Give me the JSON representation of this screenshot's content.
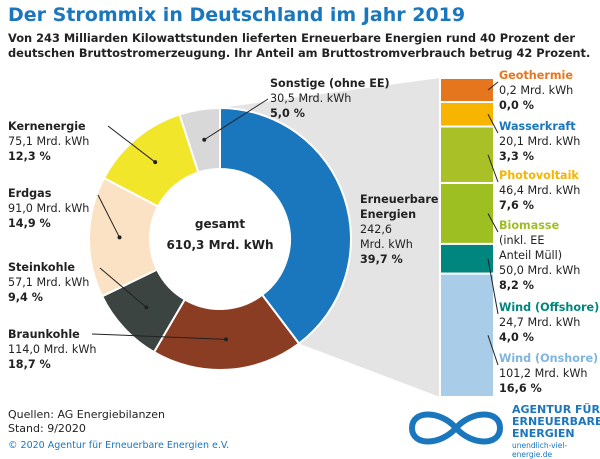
{
  "title": "Der Strommix in Deutschland im Jahr 2019",
  "subtitle": "Von 243 Milliarden Kilowattstunden lieferten Erneuerbare Energien rund 40 Prozent der deutschen Bruttostromerzeugung. Ihr Anteil am Bruttostromverbrauch betrug 42 Prozent.",
  "colors": {
    "accent": "#1a76bd",
    "kernenergie": "#f2e62a",
    "erdgas": "#fbe2c4",
    "steinkohle": "#3b4440",
    "braunkohle": "#8a3d22",
    "erneuerbare": "#1a76bd",
    "sonstige": "#d8d8d8",
    "geothermie": "#e6761e",
    "wasserkraft": "#f7b500",
    "photovoltaik": "#a9c126",
    "biomasse": "#9ebf22",
    "wind_offshore": "#00867f",
    "wind_onshore": "#a9cde8"
  },
  "chart_data": [
    {
      "type": "pie",
      "center_label": "gesamt",
      "center_value": "610,3 Mrd. kWh",
      "unit": "Mrd. kWh",
      "slices": [
        {
          "name": "Erneuerbare Energien",
          "value": "242,6",
          "share": 39.7,
          "percent": "39,7 %"
        },
        {
          "name": "Braunkohle",
          "value": "114,0",
          "share": 18.7,
          "percent": "18,7 %"
        },
        {
          "name": "Steinkohle",
          "value": "57,1",
          "share": 9.4,
          "percent": "9,4 %"
        },
        {
          "name": "Erdgas",
          "value": "91,0",
          "share": 14.9,
          "percent": "14,9 %"
        },
        {
          "name": "Kernenergie",
          "value": "75,1",
          "share": 12.3,
          "percent": "12,3 %"
        },
        {
          "name": "Sonstige (ohne EE)",
          "value": "30,5",
          "share": 5.0,
          "percent": "5,0 %"
        }
      ]
    },
    {
      "type": "bar",
      "stacked": true,
      "unit": "Mrd. kWh",
      "segments": [
        {
          "name": "Geothermie",
          "value": "0,2",
          "share": 0.0,
          "percent": "0,0 %"
        },
        {
          "name": "Wasserkraft",
          "value": "20,1",
          "share": 3.3,
          "percent": "3,3 %"
        },
        {
          "name": "Photovoltaik",
          "value": "46,4",
          "share": 7.6,
          "percent": "7,6 %"
        },
        {
          "name": "Biomasse",
          "note": "(inkl. EE",
          "note2": "Anteil Müll)",
          "value": "50,0",
          "share": 8.2,
          "percent": "8,2 %"
        },
        {
          "name": "Wind (Offshore)",
          "value": "24,7",
          "share": 4.0,
          "percent": "4,0 %"
        },
        {
          "name": "Wind (Onshore)",
          "value": "101,2",
          "share": 16.6,
          "percent": "16,6 %"
        }
      ]
    }
  ],
  "sources": {
    "line1": "Quellen: AG Energiebilanzen",
    "line2": "Stand: 9/2020"
  },
  "copyright": "© 2020 Agentur für Erneuerbare Energien e.V.",
  "logo": {
    "line1": "AGENTUR FÜR",
    "line2": "ERNEUERBARE",
    "line3": "ENERGIEN",
    "url": "unendlich-viel-energie.de"
  }
}
